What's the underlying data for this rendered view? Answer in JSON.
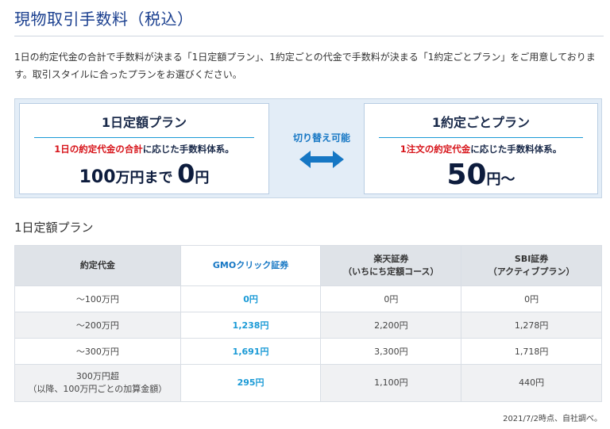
{
  "page": {
    "title": "現物取引手数料（税込）",
    "intro": "1日の約定代金の合計で手数料が決まる「1日定額プラン」、1約定ごとの代金で手数料が決まる「1約定ごとプラン」をご用意しております。取引スタイルに合ったプランをお選びください。"
  },
  "plans": {
    "left": {
      "title": "1日定額プラン",
      "desc_highlight": "1日の約定代金の合計",
      "desc_rest": "に応じた手数料体系。",
      "big_prefix_num": "100",
      "big_prefix_text": "万円まで",
      "big_num": "0",
      "big_unit": "円"
    },
    "switch_label": "切り替え可能",
    "switch_icon": "double-arrow-icon",
    "right": {
      "title": "1約定ごとプラン",
      "desc_highlight": "1注文の約定代金",
      "desc_rest": "に応じた手数料体系。",
      "big_num": "50",
      "big_unit": "円〜"
    }
  },
  "table": {
    "subtitle": "1日定額プラン",
    "headers": {
      "col0": "約定代金",
      "col1": "GMOクリック証券",
      "col2_line1": "楽天証券",
      "col2_line2": "（いちにち定額コース）",
      "col3_line1": "SBI証券",
      "col3_line2": "（アクティブプラン）"
    },
    "rows": [
      {
        "range": "〜100万円",
        "gmo": "0円",
        "rakuten": "0円",
        "sbi": "0円"
      },
      {
        "range": "〜200万円",
        "gmo": "1,238円",
        "rakuten": "2,200円",
        "sbi": "1,278円"
      },
      {
        "range": "〜300万円",
        "gmo": "1,691円",
        "rakuten": "3,300円",
        "sbi": "1,718円"
      },
      {
        "range_line1": "300万円超",
        "range_line2": "（以降、100万円ごとの加算金額）",
        "gmo": "295円",
        "rakuten": "1,100円",
        "sbi": "440円"
      }
    ],
    "note": "2021/7/2時点、自社調べ。"
  },
  "colors": {
    "title_blue": "#1a3f8f",
    "accent_blue": "#1a9ad6",
    "highlight_red": "#d7141a",
    "header_gray": "#dfe3e8"
  }
}
